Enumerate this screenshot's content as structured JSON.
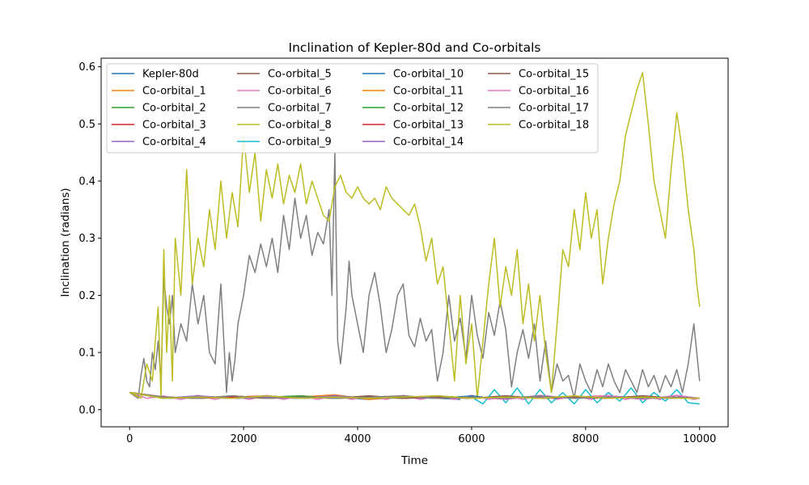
{
  "chart_data": {
    "type": "line",
    "title": "Inclination of Kepler-80d and Co-orbitals",
    "xlabel": "Time",
    "ylabel": "Inclination (radians)",
    "xlim": [
      -500,
      10500
    ],
    "ylim": [
      -0.03,
      0.615
    ],
    "xticks": [
      0,
      2000,
      4000,
      6000,
      8000,
      10000
    ],
    "xtick_labels": [
      "0",
      "2000",
      "4000",
      "6000",
      "8000",
      "10000"
    ],
    "yticks": [
      0.0,
      0.1,
      0.2,
      0.3,
      0.4,
      0.5,
      0.6
    ],
    "ytick_labels": [
      "0.0",
      "0.1",
      "0.2",
      "0.3",
      "0.4",
      "0.5",
      "0.6"
    ],
    "grid": false,
    "legend": {
      "position": "top-left",
      "columns": 4
    },
    "series": [
      {
        "name": "Kepler-80d",
        "color": "#1f77b4",
        "x": [
          0,
          600,
          1200,
          1800,
          2400,
          3000,
          3600,
          4200,
          4800,
          5400,
          5800
        ],
        "y": [
          0.03,
          0.02,
          0.022,
          0.02,
          0.024,
          0.02,
          0.022,
          0.018,
          0.022,
          0.02,
          0.018
        ]
      },
      {
        "name": "Co-orbital_1",
        "color": "#ff7f0e",
        "x": [
          0,
          600,
          1200,
          1800,
          2400,
          3000,
          3600,
          4200,
          4800,
          5400,
          6000,
          6600,
          7200,
          7800,
          8400,
          9000,
          9600,
          10000
        ],
        "y": [
          0.03,
          0.022,
          0.02,
          0.024,
          0.02,
          0.022,
          0.026,
          0.018,
          0.022,
          0.024,
          0.02,
          0.022,
          0.02,
          0.024,
          0.02,
          0.022,
          0.02,
          0.02
        ]
      },
      {
        "name": "Co-orbital_2",
        "color": "#2ca02c",
        "x": [
          0,
          600,
          1200,
          1800,
          2400,
          3000,
          3600,
          4200,
          4800,
          5400,
          6000,
          6600,
          7200,
          7800,
          8400,
          9000,
          9600,
          10000
        ],
        "y": [
          0.03,
          0.02,
          0.022,
          0.02,
          0.024,
          0.02,
          0.022,
          0.02,
          0.022,
          0.02,
          0.022,
          0.02,
          0.024,
          0.02,
          0.022,
          0.02,
          0.022,
          0.02
        ]
      },
      {
        "name": "Co-orbital_3",
        "color": "#d62728",
        "x": [
          0,
          600,
          1200,
          1800,
          2400,
          3000,
          3600,
          4200,
          4800,
          5400,
          6000,
          6600,
          7200,
          7800,
          8400,
          9000,
          9600,
          10000
        ],
        "y": [
          0.03,
          0.022,
          0.02,
          0.022,
          0.02,
          0.024,
          0.02,
          0.022,
          0.02,
          0.024,
          0.02,
          0.022,
          0.02,
          0.022,
          0.024,
          0.02,
          0.022,
          0.02
        ]
      },
      {
        "name": "Co-orbital_4",
        "color": "#9467bd",
        "x": [
          0,
          600,
          1200,
          1800,
          2400,
          3000,
          3600,
          4200,
          4800,
          5400,
          6000,
          6600,
          7200,
          7800,
          8400,
          9000,
          9600,
          10000
        ],
        "y": [
          0.03,
          0.02,
          0.024,
          0.02,
          0.022,
          0.02,
          0.022,
          0.02,
          0.024,
          0.02,
          0.022,
          0.02,
          0.022,
          0.02,
          0.024,
          0.02,
          0.02,
          0.02
        ]
      },
      {
        "name": "Co-orbital_5",
        "color": "#8c564b",
        "x": [
          0,
          600,
          1200,
          1800,
          2400,
          3000,
          3600,
          4200,
          4800,
          5400,
          6000,
          6600,
          7200,
          7800,
          8400,
          9000,
          9600,
          10000
        ],
        "y": [
          0.03,
          0.022,
          0.02,
          0.024,
          0.02,
          0.022,
          0.02,
          0.024,
          0.02,
          0.022,
          0.02,
          0.024,
          0.02,
          0.022,
          0.02,
          0.024,
          0.02,
          0.02
        ]
      },
      {
        "name": "Co-orbital_6",
        "color": "#e377c2",
        "x": [
          0,
          300,
          600,
          900,
          1200,
          1500,
          1800,
          2100,
          2400,
          2700,
          3000,
          3300,
          3600,
          3900,
          4200,
          4500,
          4800,
          5100,
          5400,
          5700,
          6000,
          6300,
          6600,
          6900,
          7200,
          7500,
          7800,
          8100,
          8400,
          8700,
          9000,
          9300,
          9600,
          9900,
          10000
        ],
        "y": [
          0.03,
          0.02,
          0.024,
          0.018,
          0.025,
          0.018,
          0.024,
          0.018,
          0.025,
          0.018,
          0.024,
          0.018,
          0.025,
          0.018,
          0.024,
          0.018,
          0.025,
          0.018,
          0.024,
          0.018,
          0.025,
          0.018,
          0.024,
          0.018,
          0.025,
          0.018,
          0.024,
          0.018,
          0.025,
          0.018,
          0.024,
          0.018,
          0.025,
          0.018,
          0.02
        ]
      },
      {
        "name": "Co-orbital_7",
        "color": "#7f7f7f",
        "x": [
          0,
          150,
          200,
          250,
          300,
          350,
          400,
          450,
          500,
          550,
          600,
          650,
          700,
          750,
          800,
          900,
          1000,
          1100,
          1200,
          1300,
          1400,
          1500,
          1600,
          1700,
          1750,
          1800,
          1850,
          1900,
          2000,
          2100,
          2200,
          2300,
          2400,
          2500,
          2600,
          2700,
          2800,
          2900,
          3000,
          3100,
          3200,
          3300,
          3400,
          3500,
          3550,
          3600,
          3650,
          3700,
          3800,
          3850,
          3900,
          4000,
          4100,
          4200,
          4300,
          4400,
          4500,
          4600,
          4700,
          4800,
          4900,
          5000,
          5100,
          5200,
          5300,
          5400,
          5500,
          5600,
          5700,
          5800,
          5900,
          6000,
          6100,
          6200,
          6300,
          6400,
          6500,
          6600,
          6700,
          6800,
          6900,
          7000,
          7100,
          7200,
          7300,
          7400,
          7500,
          7600,
          7700,
          7800,
          7900,
          8000,
          8100,
          8200,
          8300,
          8400,
          8500,
          8600,
          8700,
          8800,
          8900,
          9000,
          9100,
          9200,
          9300,
          9400,
          9500,
          9600,
          9700,
          9800,
          9900,
          10000
        ],
        "y": [
          0.03,
          0.02,
          0.06,
          0.09,
          0.05,
          0.04,
          0.1,
          0.07,
          0.12,
          0.05,
          0.23,
          0.18,
          0.15,
          0.2,
          0.1,
          0.15,
          0.12,
          0.22,
          0.15,
          0.2,
          0.1,
          0.08,
          0.22,
          0.03,
          0.1,
          0.05,
          0.09,
          0.15,
          0.2,
          0.27,
          0.24,
          0.29,
          0.25,
          0.3,
          0.24,
          0.34,
          0.28,
          0.37,
          0.3,
          0.34,
          0.27,
          0.31,
          0.29,
          0.35,
          0.2,
          0.45,
          0.12,
          0.08,
          0.18,
          0.26,
          0.2,
          0.15,
          0.1,
          0.2,
          0.24,
          0.18,
          0.1,
          0.14,
          0.2,
          0.22,
          0.13,
          0.11,
          0.16,
          0.12,
          0.14,
          0.05,
          0.1,
          0.2,
          0.12,
          0.16,
          0.09,
          0.2,
          0.13,
          0.09,
          0.17,
          0.13,
          0.19,
          0.14,
          0.04,
          0.1,
          0.14,
          0.09,
          0.15,
          0.05,
          0.12,
          0.03,
          0.08,
          0.05,
          0.06,
          0.02,
          0.08,
          0.05,
          0.03,
          0.07,
          0.04,
          0.08,
          0.05,
          0.03,
          0.07,
          0.05,
          0.03,
          0.07,
          0.04,
          0.06,
          0.03,
          0.06,
          0.04,
          0.07,
          0.03,
          0.08,
          0.15,
          0.05
        ]
      },
      {
        "name": "Co-orbital_8",
        "color": "#bcbd22",
        "x": [
          0,
          200,
          300,
          400,
          450,
          500,
          550,
          600,
          650,
          700,
          750,
          800,
          900,
          1000,
          1100,
          1200,
          1300,
          1400,
          1500,
          1600,
          1700,
          1800,
          1900,
          2000,
          2100,
          2200,
          2300,
          2400,
          2500,
          2600,
          2700,
          2800,
          2900,
          3000,
          3100,
          3200,
          3300,
          3400,
          3500,
          3600,
          3700,
          3800,
          3900,
          4000,
          4100,
          4200,
          4300,
          4400,
          4500,
          4600,
          4700,
          4800,
          4900,
          5000,
          5100,
          5200,
          5300,
          5400,
          5500,
          5600,
          5700,
          5800,
          5900,
          6000,
          6100,
          6200,
          6300,
          6400,
          6500,
          6600,
          6700,
          6800,
          6900,
          7000,
          7100,
          7200,
          7300,
          7400,
          7500,
          7600,
          7700,
          7800,
          7900,
          8000,
          8100,
          8200,
          8300,
          8400,
          8500,
          8600,
          8700,
          8800,
          8900,
          9000,
          9100,
          9200,
          9300,
          9400,
          9500,
          9600,
          9700,
          9800,
          9900,
          9950,
          10000
        ],
        "y": [
          0.03,
          0.02,
          0.08,
          0.05,
          0.12,
          0.18,
          0.02,
          0.28,
          0.1,
          0.2,
          0.05,
          0.3,
          0.2,
          0.42,
          0.22,
          0.3,
          0.25,
          0.35,
          0.28,
          0.4,
          0.3,
          0.38,
          0.32,
          0.48,
          0.38,
          0.45,
          0.33,
          0.42,
          0.37,
          0.43,
          0.36,
          0.41,
          0.38,
          0.43,
          0.36,
          0.4,
          0.37,
          0.34,
          0.33,
          0.39,
          0.41,
          0.38,
          0.37,
          0.39,
          0.37,
          0.36,
          0.37,
          0.35,
          0.39,
          0.37,
          0.36,
          0.35,
          0.34,
          0.36,
          0.32,
          0.26,
          0.3,
          0.22,
          0.25,
          0.15,
          0.05,
          0.2,
          0.08,
          0.15,
          0.02,
          0.12,
          0.22,
          0.3,
          0.18,
          0.25,
          0.2,
          0.28,
          0.15,
          0.22,
          0.12,
          0.2,
          0.1,
          0.03,
          0.15,
          0.28,
          0.25,
          0.35,
          0.28,
          0.38,
          0.3,
          0.35,
          0.22,
          0.3,
          0.36,
          0.4,
          0.48,
          0.52,
          0.56,
          0.59,
          0.5,
          0.4,
          0.35,
          0.3,
          0.42,
          0.52,
          0.45,
          0.35,
          0.28,
          0.22,
          0.18
        ]
      },
      {
        "name": "Co-orbital_9",
        "color": "#17becf",
        "x": [
          0,
          600,
          1200,
          1800,
          2400,
          3000,
          3600,
          4200,
          4800,
          5400,
          6000,
          6200,
          6400,
          6600,
          6800,
          7000,
          7200,
          7400,
          7600,
          7800,
          8000,
          8200,
          8400,
          8600,
          8800,
          9000,
          9200,
          9400,
          9600,
          9800,
          10000
        ],
        "y": [
          0.03,
          0.02,
          0.022,
          0.02,
          0.024,
          0.02,
          0.022,
          0.02,
          0.024,
          0.02,
          0.022,
          0.01,
          0.035,
          0.012,
          0.038,
          0.01,
          0.035,
          0.012,
          0.03,
          0.01,
          0.035,
          0.012,
          0.03,
          0.015,
          0.038,
          0.012,
          0.03,
          0.015,
          0.035,
          0.012,
          0.01
        ]
      },
      {
        "name": "Co-orbital_10",
        "color": "#1f77b4",
        "x": [
          0,
          600,
          1200,
          1800,
          2400,
          3000,
          3600,
          4200,
          4800,
          5400,
          6000,
          6200
        ],
        "y": [
          0.03,
          0.02,
          0.022,
          0.02,
          0.022,
          0.02,
          0.024,
          0.02,
          0.022,
          0.02,
          0.024,
          0.022
        ]
      },
      {
        "name": "Co-orbital_11",
        "color": "#ff7f0e",
        "x": [
          0,
          600,
          1200,
          1800,
          2400,
          3000,
          3600,
          4200,
          4800,
          5400,
          6000
        ],
        "y": [
          0.03,
          0.022,
          0.02,
          0.024,
          0.02,
          0.022,
          0.02,
          0.022,
          0.024,
          0.02,
          0.022
        ]
      },
      {
        "name": "Co-orbital_12",
        "color": "#2ca02c",
        "x": [
          0,
          600,
          1200,
          1800,
          2400,
          3000,
          3600,
          4200,
          4800,
          5400,
          6000
        ],
        "y": [
          0.03,
          0.02,
          0.022,
          0.02,
          0.022,
          0.024,
          0.02,
          0.022,
          0.02,
          0.024,
          0.02
        ]
      },
      {
        "name": "Co-orbital_13",
        "color": "#d62728",
        "x": [
          0,
          600,
          1200,
          1800,
          2400,
          3000,
          3600,
          4200,
          4800,
          5400,
          6000
        ],
        "y": [
          0.03,
          0.022,
          0.02,
          0.022,
          0.024,
          0.02,
          0.022,
          0.02,
          0.024,
          0.02,
          0.022
        ]
      },
      {
        "name": "Co-orbital_14",
        "color": "#9467bd",
        "x": [
          0,
          600,
          1200,
          1800,
          2400,
          3000,
          3600,
          4200,
          4800,
          5400,
          6000
        ],
        "y": [
          0.03,
          0.02,
          0.024,
          0.02,
          0.022,
          0.02,
          0.024,
          0.02,
          0.022,
          0.02,
          0.022
        ]
      },
      {
        "name": "Co-orbital_15",
        "color": "#8c564b",
        "x": [
          0,
          600,
          1200,
          1800,
          2400,
          3000,
          3600,
          4200,
          4800,
          5400,
          6000,
          6600,
          7200,
          7800,
          8400,
          9000,
          9600,
          10000
        ],
        "y": [
          0.03,
          0.022,
          0.02,
          0.024,
          0.02,
          0.022,
          0.02,
          0.024,
          0.02,
          0.022,
          0.02,
          0.024,
          0.02,
          0.022,
          0.02,
          0.024,
          0.02,
          0.02
        ]
      },
      {
        "name": "Co-orbital_16",
        "color": "#e377c2",
        "x": [
          0,
          600,
          1200,
          1800,
          2400,
          3000,
          3600,
          4200,
          4800,
          5400,
          6000,
          6600,
          7200,
          7800,
          8400,
          9000,
          9600,
          10000
        ],
        "y": [
          0.03,
          0.02,
          0.022,
          0.02,
          0.024,
          0.02,
          0.022,
          0.02,
          0.024,
          0.02,
          0.022,
          0.018,
          0.025,
          0.02,
          0.024,
          0.018,
          0.025,
          0.02
        ]
      },
      {
        "name": "Co-orbital_17",
        "color": "#7f7f7f",
        "x": [
          0,
          600,
          1200,
          1800,
          2400,
          3000,
          3600,
          4200,
          4800,
          5400,
          6000,
          6600,
          7200,
          7800,
          8400,
          9000,
          9600,
          10000
        ],
        "y": [
          0.03,
          0.022,
          0.02,
          0.024,
          0.02,
          0.022,
          0.02,
          0.022,
          0.024,
          0.02,
          0.022,
          0.02,
          0.024,
          0.02,
          0.022,
          0.02,
          0.022,
          0.02
        ]
      },
      {
        "name": "Co-orbital_18",
        "color": "#bcbd22",
        "x": [
          0,
          600,
          1200,
          1800,
          2400,
          3000,
          3600,
          4200,
          4800,
          5400,
          6000,
          6600,
          7200,
          7800,
          8400,
          9000,
          9600,
          10000
        ],
        "y": [
          0.03,
          0.02,
          0.022,
          0.02,
          0.024,
          0.02,
          0.022,
          0.02,
          0.022,
          0.024,
          0.02,
          0.022,
          0.02,
          0.024,
          0.02,
          0.022,
          0.02,
          0.02
        ]
      }
    ]
  }
}
